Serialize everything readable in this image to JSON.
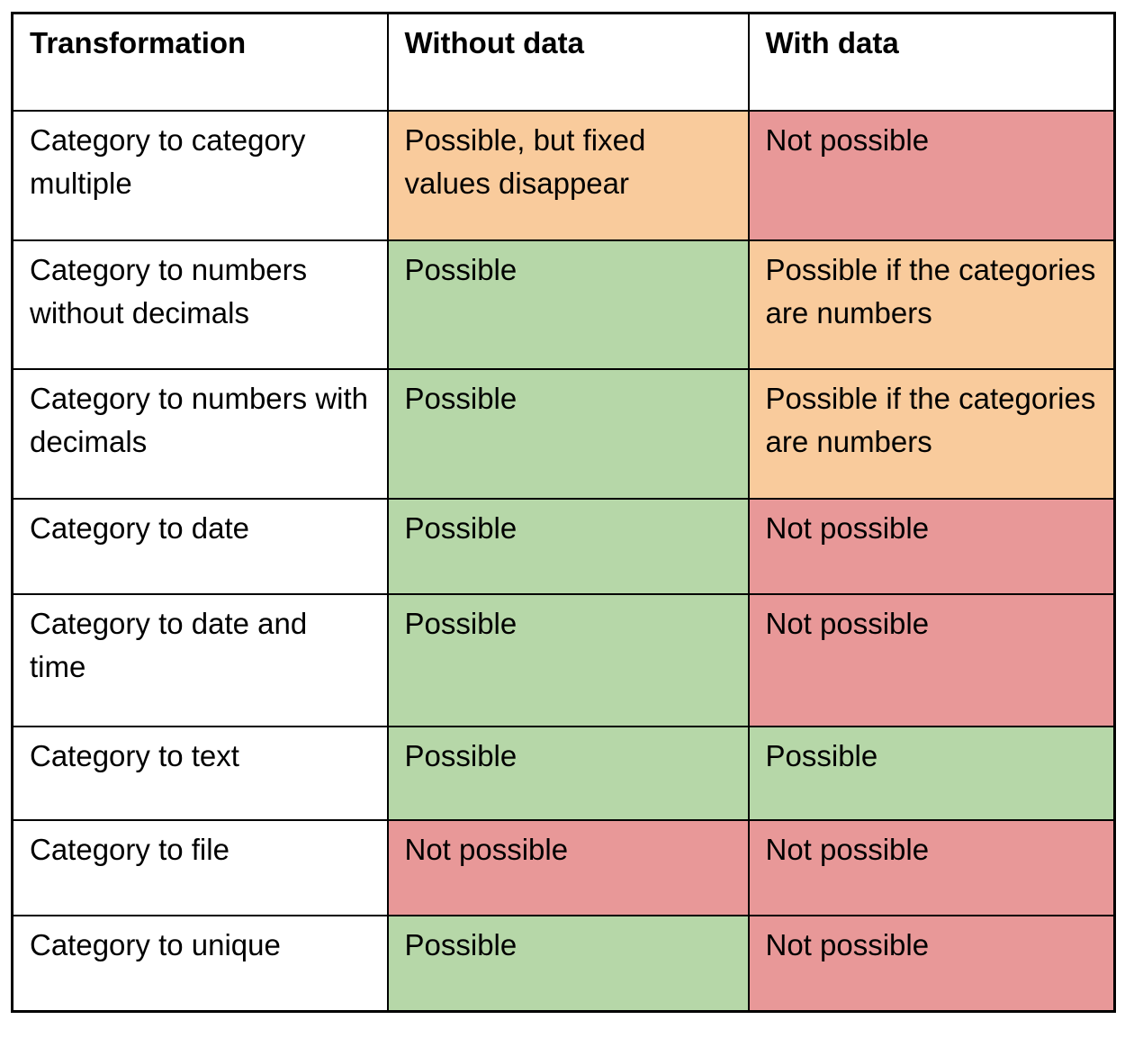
{
  "colors": {
    "green": "#B6D7A8",
    "orange": "#F9CB9C",
    "red": "#E89898",
    "border": "#000000",
    "background": "#ffffff"
  },
  "table": {
    "columns": [
      {
        "label": "Transformation"
      },
      {
        "label": "Without data"
      },
      {
        "label": "With data"
      }
    ],
    "rows": [
      {
        "transformation": "Category to category multiple",
        "without_data": {
          "text": "Possible, but fixed values disappear",
          "color": "orange"
        },
        "with_data": {
          "text": "Not possible",
          "color": "red"
        }
      },
      {
        "transformation": "Category to numbers without decimals",
        "without_data": {
          "text": "Possible",
          "color": "green"
        },
        "with_data": {
          "text": "Possible if the categories are numbers",
          "color": "orange"
        }
      },
      {
        "transformation": "Category to numbers with decimals",
        "without_data": {
          "text": "Possible",
          "color": "green"
        },
        "with_data": {
          "text": "Possible if the categories are numbers",
          "color": "orange"
        }
      },
      {
        "transformation": "Category to date",
        "without_data": {
          "text": "Possible",
          "color": "green"
        },
        "with_data": {
          "text": "Not possible",
          "color": "red"
        }
      },
      {
        "transformation": "Category to date and time",
        "without_data": {
          "text": "Possible",
          "color": "green"
        },
        "with_data": {
          "text": "Not possible",
          "color": "red"
        }
      },
      {
        "transformation": "Category to text",
        "without_data": {
          "text": "Possible",
          "color": "green"
        },
        "with_data": {
          "text": "Possible",
          "color": "green"
        }
      },
      {
        "transformation": "Category to file",
        "without_data": {
          "text": "Not possible",
          "color": "red"
        },
        "with_data": {
          "text": "Not possible",
          "color": "red"
        }
      },
      {
        "transformation": "Category to unique",
        "without_data": {
          "text": "Possible",
          "color": "green"
        },
        "with_data": {
          "text": "Not possible",
          "color": "red"
        }
      }
    ]
  }
}
